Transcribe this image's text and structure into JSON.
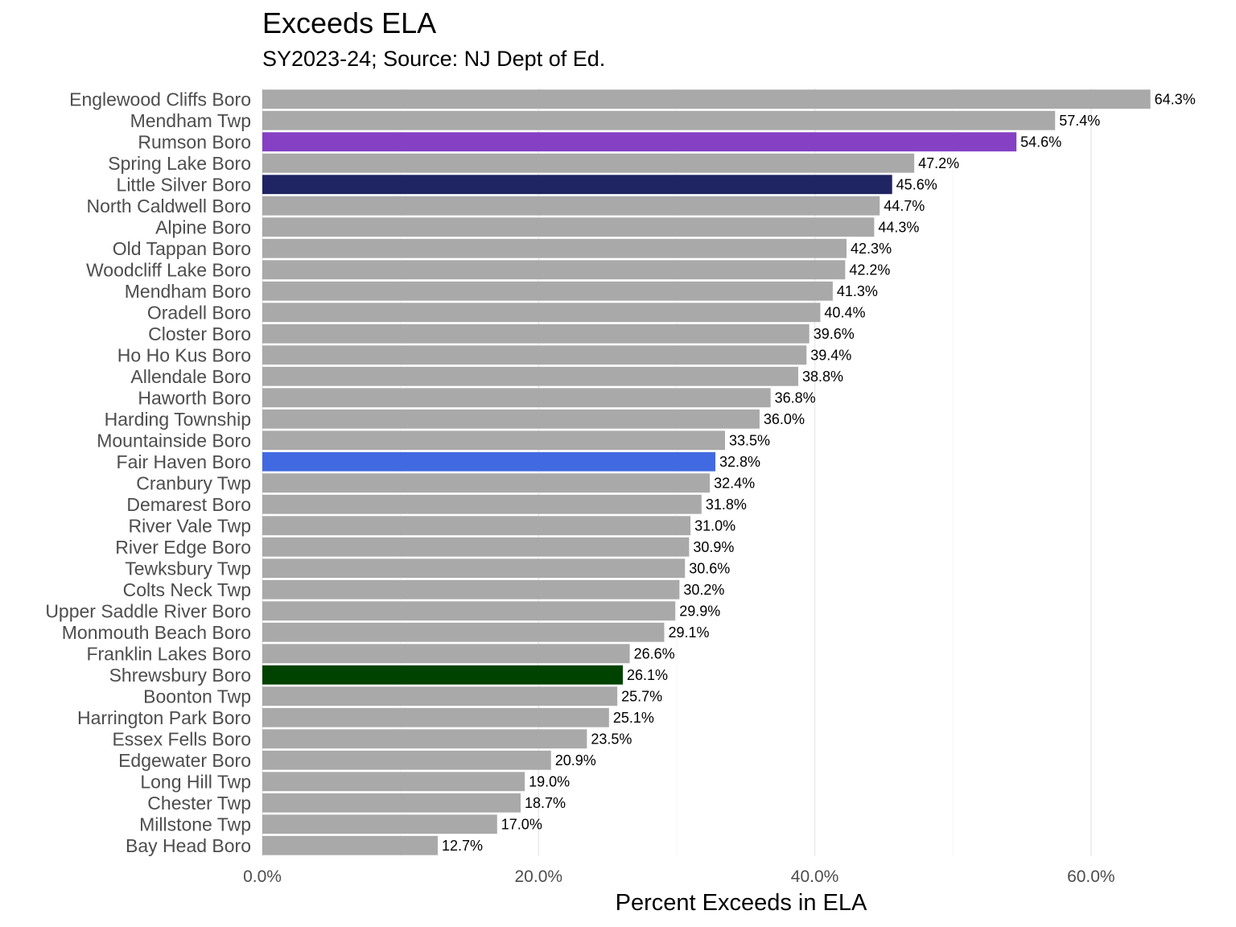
{
  "chart_data": {
    "type": "bar",
    "orientation": "horizontal",
    "title": "Exceeds ELA",
    "subtitle": "SY2023-24; Source: NJ Dept of Ed.",
    "xlabel": "Percent Exceeds in ELA",
    "ylabel": "",
    "xlim": [
      0,
      67
    ],
    "x_ticks": [
      0,
      20,
      40,
      60
    ],
    "x_tick_labels": [
      "0.0%",
      "20.0%",
      "40.0%",
      "60.0%"
    ],
    "grid": true,
    "default_color": "#a9a9a9",
    "categories": [
      "Englewood Cliffs Boro",
      "Mendham Twp",
      "Rumson Boro",
      "Spring Lake Boro",
      "Little Silver Boro",
      "North Caldwell Boro",
      "Alpine Boro",
      "Old Tappan Boro",
      "Woodcliff Lake Boro",
      "Mendham Boro",
      "Oradell Boro",
      "Closter Boro",
      "Ho Ho Kus Boro",
      "Allendale Boro",
      "Haworth Boro",
      "Harding Township",
      "Mountainside Boro",
      "Fair Haven Boro",
      "Cranbury Twp",
      "Demarest Boro",
      "River Vale Twp",
      "River Edge Boro",
      "Tewksbury Twp",
      "Colts Neck Twp",
      "Upper Saddle River Boro",
      "Monmouth Beach Boro",
      "Franklin Lakes Boro",
      "Shrewsbury Boro",
      "Boonton Twp",
      "Harrington Park Boro",
      "Essex Fells Boro",
      "Edgewater Boro",
      "Long Hill Twp",
      "Chester Twp",
      "Millstone Twp",
      "Bay Head Boro"
    ],
    "values": [
      64.3,
      57.4,
      54.6,
      47.2,
      45.6,
      44.7,
      44.3,
      42.3,
      42.2,
      41.3,
      40.4,
      39.6,
      39.4,
      38.8,
      36.8,
      36.0,
      33.5,
      32.8,
      32.4,
      31.8,
      31.0,
      30.9,
      30.6,
      30.2,
      29.9,
      29.1,
      26.6,
      26.1,
      25.7,
      25.1,
      23.5,
      20.9,
      19.0,
      18.7,
      17.0,
      12.7
    ],
    "value_labels": [
      "64.3%",
      "57.4%",
      "54.6%",
      "47.2%",
      "45.6%",
      "44.7%",
      "44.3%",
      "42.3%",
      "42.2%",
      "41.3%",
      "40.4%",
      "39.6%",
      "39.4%",
      "38.8%",
      "36.8%",
      "36.0%",
      "33.5%",
      "32.8%",
      "32.4%",
      "31.8%",
      "31.0%",
      "30.9%",
      "30.6%",
      "30.2%",
      "29.9%",
      "29.1%",
      "26.6%",
      "26.1%",
      "25.7%",
      "25.1%",
      "23.5%",
      "20.9%",
      "19.0%",
      "18.7%",
      "17.0%",
      "12.7%"
    ],
    "highlight_colors": {
      "Rumson Boro": "#8540c4",
      "Little Silver Boro": "#1f2462",
      "Fair Haven Boro": "#4169e1",
      "Shrewsbury Boro": "#004200"
    }
  }
}
